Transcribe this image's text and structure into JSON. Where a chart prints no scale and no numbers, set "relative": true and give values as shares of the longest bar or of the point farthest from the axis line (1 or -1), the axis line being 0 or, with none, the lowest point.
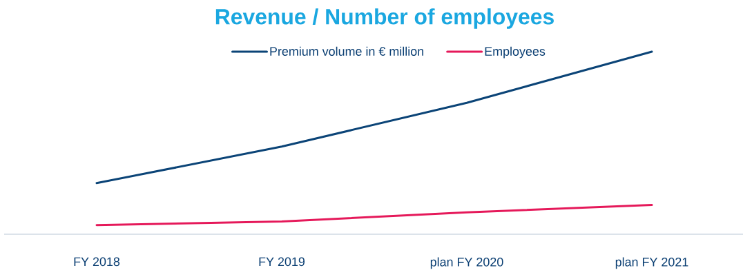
{
  "chart_data": {
    "type": "line",
    "title": "Revenue / Number of employees",
    "categories": [
      "FY 2018",
      "FY 2019",
      "plan FY 2020",
      "plan FY 2021"
    ],
    "relative": true,
    "series": [
      {
        "name": "Premium volume in € million",
        "color": "#0b4477",
        "values": [
          0.28,
          0.48,
          0.72,
          1
        ]
      },
      {
        "name": "Employees",
        "color": "#e5195a",
        "values": [
          0.05,
          0.07,
          0.12,
          0.16
        ]
      }
    ],
    "legend": "top",
    "grid": false,
    "marker": "none",
    "line_style": "solid"
  }
}
